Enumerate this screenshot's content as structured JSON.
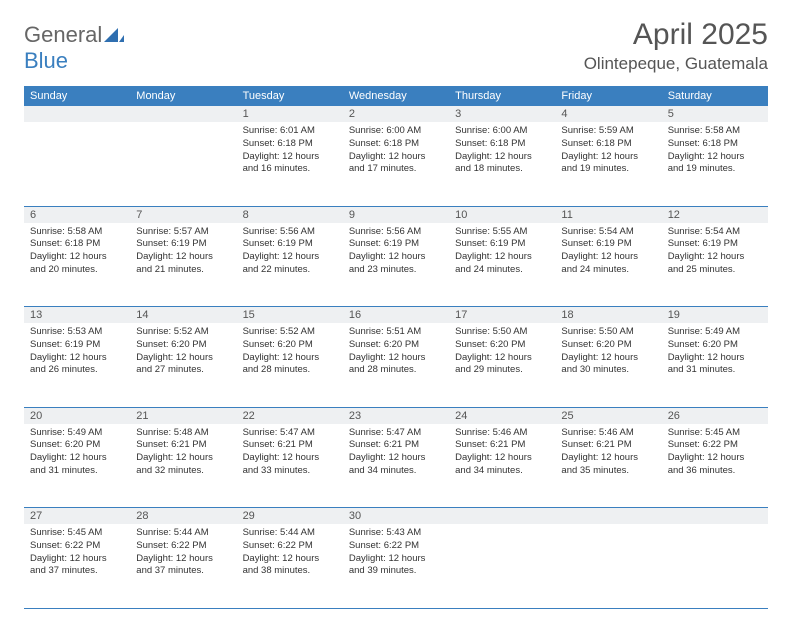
{
  "brand": {
    "text_general": "General",
    "text_blue": "Blue",
    "logo_color": "#2f6fb0"
  },
  "header": {
    "month_title": "April 2025",
    "location": "Olintepeque, Guatemala"
  },
  "colors": {
    "header_bg": "#3a7fbf",
    "header_text": "#ffffff",
    "daynum_bg": "#eef0f2",
    "body_text": "#333333",
    "rule": "#3a7fbf"
  },
  "weekdays": [
    "Sunday",
    "Monday",
    "Tuesday",
    "Wednesday",
    "Thursday",
    "Friday",
    "Saturday"
  ],
  "weeks": [
    [
      null,
      null,
      {
        "n": "1",
        "sr": "6:01 AM",
        "ss": "6:18 PM",
        "dl": "12 hours and 16 minutes."
      },
      {
        "n": "2",
        "sr": "6:00 AM",
        "ss": "6:18 PM",
        "dl": "12 hours and 17 minutes."
      },
      {
        "n": "3",
        "sr": "6:00 AM",
        "ss": "6:18 PM",
        "dl": "12 hours and 18 minutes."
      },
      {
        "n": "4",
        "sr": "5:59 AM",
        "ss": "6:18 PM",
        "dl": "12 hours and 19 minutes."
      },
      {
        "n": "5",
        "sr": "5:58 AM",
        "ss": "6:18 PM",
        "dl": "12 hours and 19 minutes."
      }
    ],
    [
      {
        "n": "6",
        "sr": "5:58 AM",
        "ss": "6:18 PM",
        "dl": "12 hours and 20 minutes."
      },
      {
        "n": "7",
        "sr": "5:57 AM",
        "ss": "6:19 PM",
        "dl": "12 hours and 21 minutes."
      },
      {
        "n": "8",
        "sr": "5:56 AM",
        "ss": "6:19 PM",
        "dl": "12 hours and 22 minutes."
      },
      {
        "n": "9",
        "sr": "5:56 AM",
        "ss": "6:19 PM",
        "dl": "12 hours and 23 minutes."
      },
      {
        "n": "10",
        "sr": "5:55 AM",
        "ss": "6:19 PM",
        "dl": "12 hours and 24 minutes."
      },
      {
        "n": "11",
        "sr": "5:54 AM",
        "ss": "6:19 PM",
        "dl": "12 hours and 24 minutes."
      },
      {
        "n": "12",
        "sr": "5:54 AM",
        "ss": "6:19 PM",
        "dl": "12 hours and 25 minutes."
      }
    ],
    [
      {
        "n": "13",
        "sr": "5:53 AM",
        "ss": "6:19 PM",
        "dl": "12 hours and 26 minutes."
      },
      {
        "n": "14",
        "sr": "5:52 AM",
        "ss": "6:20 PM",
        "dl": "12 hours and 27 minutes."
      },
      {
        "n": "15",
        "sr": "5:52 AM",
        "ss": "6:20 PM",
        "dl": "12 hours and 28 minutes."
      },
      {
        "n": "16",
        "sr": "5:51 AM",
        "ss": "6:20 PM",
        "dl": "12 hours and 28 minutes."
      },
      {
        "n": "17",
        "sr": "5:50 AM",
        "ss": "6:20 PM",
        "dl": "12 hours and 29 minutes."
      },
      {
        "n": "18",
        "sr": "5:50 AM",
        "ss": "6:20 PM",
        "dl": "12 hours and 30 minutes."
      },
      {
        "n": "19",
        "sr": "5:49 AM",
        "ss": "6:20 PM",
        "dl": "12 hours and 31 minutes."
      }
    ],
    [
      {
        "n": "20",
        "sr": "5:49 AM",
        "ss": "6:20 PM",
        "dl": "12 hours and 31 minutes."
      },
      {
        "n": "21",
        "sr": "5:48 AM",
        "ss": "6:21 PM",
        "dl": "12 hours and 32 minutes."
      },
      {
        "n": "22",
        "sr": "5:47 AM",
        "ss": "6:21 PM",
        "dl": "12 hours and 33 minutes."
      },
      {
        "n": "23",
        "sr": "5:47 AM",
        "ss": "6:21 PM",
        "dl": "12 hours and 34 minutes."
      },
      {
        "n": "24",
        "sr": "5:46 AM",
        "ss": "6:21 PM",
        "dl": "12 hours and 34 minutes."
      },
      {
        "n": "25",
        "sr": "5:46 AM",
        "ss": "6:21 PM",
        "dl": "12 hours and 35 minutes."
      },
      {
        "n": "26",
        "sr": "5:45 AM",
        "ss": "6:22 PM",
        "dl": "12 hours and 36 minutes."
      }
    ],
    [
      {
        "n": "27",
        "sr": "5:45 AM",
        "ss": "6:22 PM",
        "dl": "12 hours and 37 minutes."
      },
      {
        "n": "28",
        "sr": "5:44 AM",
        "ss": "6:22 PM",
        "dl": "12 hours and 37 minutes."
      },
      {
        "n": "29",
        "sr": "5:44 AM",
        "ss": "6:22 PM",
        "dl": "12 hours and 38 minutes."
      },
      {
        "n": "30",
        "sr": "5:43 AM",
        "ss": "6:22 PM",
        "dl": "12 hours and 39 minutes."
      },
      null,
      null,
      null
    ]
  ],
  "labels": {
    "sunrise": "Sunrise: ",
    "sunset": "Sunset: ",
    "daylight": "Daylight: "
  }
}
